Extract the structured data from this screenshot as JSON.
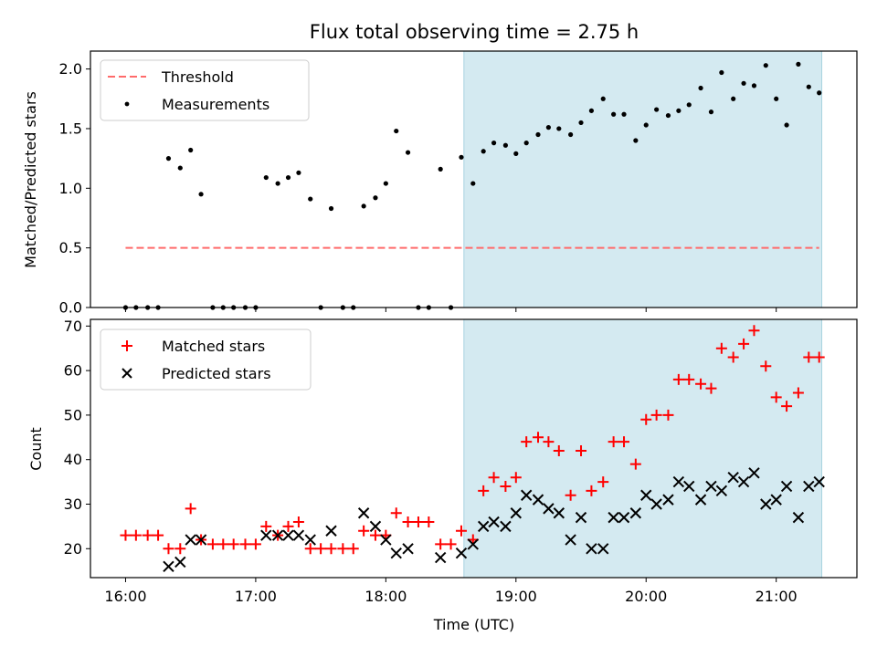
{
  "title": "Flux total observing time = 2.75 h",
  "colors": {
    "threshold": "#ff6b6b",
    "measurement": "#000000",
    "matched": "#ff0000",
    "predicted": "#000000",
    "shade": "#d4eaf1",
    "shade_edge": "#a9d3e0"
  },
  "chart_data": [
    {
      "type": "scatter",
      "ylabel": "Matched/Predicted stars",
      "xlim": [
        15.73,
        21.62
      ],
      "ylim": [
        0,
        2.15
      ],
      "yticks": [
        0.0,
        0.5,
        1.0,
        1.5,
        2.0
      ],
      "ytick_labels": [
        "0.0",
        "0.5",
        "1.0",
        "1.5",
        "2.0"
      ],
      "shaded_x": [
        18.6,
        21.35
      ],
      "legend": {
        "threshold": "Threshold",
        "measurements": "Measurements"
      },
      "threshold": {
        "value": 0.5,
        "x": [
          16.0,
          21.33
        ]
      },
      "measurements": {
        "x": [
          16.0,
          16.08,
          16.17,
          16.25,
          16.33,
          16.42,
          16.5,
          16.58,
          16.67,
          16.75,
          16.83,
          16.92,
          17.0,
          17.08,
          17.17,
          17.25,
          17.33,
          17.42,
          17.5,
          17.58,
          17.67,
          17.75,
          17.83,
          17.92,
          18.0,
          18.08,
          18.17,
          18.25,
          18.33,
          18.42,
          18.5,
          18.58,
          18.67,
          18.75,
          18.83,
          18.92,
          19.0,
          19.08,
          19.17,
          19.25,
          19.33,
          19.42,
          19.5,
          19.58,
          19.67,
          19.75,
          19.83,
          19.92,
          20.0,
          20.08,
          20.17,
          20.25,
          20.33,
          20.42,
          20.5,
          20.58,
          20.67,
          20.75,
          20.83,
          20.92,
          21.0,
          21.08,
          21.17,
          21.25,
          21.33
        ],
        "y": [
          0,
          0,
          0,
          0,
          1.25,
          1.17,
          1.32,
          0.95,
          0,
          0,
          0,
          0,
          0,
          1.09,
          1.04,
          1.09,
          1.13,
          0.91,
          0,
          0.83,
          0,
          0,
          0.85,
          0.92,
          1.04,
          1.48,
          1.3,
          0,
          0,
          1.16,
          0,
          1.26,
          1.04,
          1.31,
          1.38,
          1.36,
          1.29,
          1.38,
          1.45,
          1.51,
          1.5,
          1.45,
          1.55,
          1.65,
          1.75,
          1.62,
          1.62,
          1.4,
          1.53,
          1.66,
          1.61,
          1.65,
          1.7,
          1.84,
          1.64,
          1.97,
          1.75,
          1.88,
          1.86,
          2.03,
          1.75,
          1.53,
          2.04,
          1.85,
          1.8
        ]
      }
    },
    {
      "type": "scatter",
      "xlabel": "Time (UTC)",
      "ylabel": "Count",
      "xlim": [
        15.73,
        21.62
      ],
      "ylim": [
        13.5,
        71.5
      ],
      "yticks": [
        20,
        30,
        40,
        50,
        60,
        70
      ],
      "ytick_labels": [
        "20",
        "30",
        "40",
        "50",
        "60",
        "70"
      ],
      "xticks": [
        16,
        17,
        18,
        19,
        20,
        21
      ],
      "xtick_labels": [
        "16:00",
        "17:00",
        "18:00",
        "19:00",
        "20:00",
        "21:00"
      ],
      "shaded_x": [
        18.6,
        21.35
      ],
      "legend": {
        "matched": "Matched stars",
        "predicted": "Predicted stars"
      },
      "matched": {
        "x": [
          16.0,
          16.08,
          16.17,
          16.25,
          16.33,
          16.42,
          16.5,
          16.58,
          16.67,
          16.75,
          16.83,
          16.92,
          17.0,
          17.08,
          17.17,
          17.25,
          17.33,
          17.42,
          17.5,
          17.58,
          17.67,
          17.75,
          17.83,
          17.92,
          18.0,
          18.08,
          18.17,
          18.25,
          18.33,
          18.42,
          18.5,
          18.58,
          18.67,
          18.75,
          18.83,
          18.92,
          19.0,
          19.08,
          19.17,
          19.25,
          19.33,
          19.42,
          19.5,
          19.58,
          19.67,
          19.75,
          19.83,
          19.92,
          20.0,
          20.08,
          20.17,
          20.25,
          20.33,
          20.42,
          20.5,
          20.58,
          20.67,
          20.75,
          20.83,
          20.92,
          21.0,
          21.08,
          21.17,
          21.25,
          21.33
        ],
        "y": [
          23,
          23,
          23,
          23,
          20,
          20,
          29,
          22,
          21,
          21,
          21,
          21,
          21,
          25,
          23,
          25,
          26,
          20,
          20,
          20,
          20,
          20,
          24,
          23,
          23,
          28,
          26,
          26,
          26,
          21,
          21,
          24,
          22,
          33,
          36,
          34,
          36,
          44,
          45,
          44,
          42,
          32,
          42,
          33,
          35,
          44,
          44,
          39,
          49,
          50,
          50,
          58,
          58,
          57,
          56,
          65,
          63,
          66,
          69,
          61,
          54,
          52,
          55,
          63,
          63
        ]
      },
      "predicted": {
        "x": [
          16.33,
          16.42,
          16.5,
          16.58,
          17.08,
          17.17,
          17.25,
          17.33,
          17.42,
          17.58,
          17.83,
          17.92,
          18.0,
          18.08,
          18.17,
          18.42,
          18.58,
          18.67,
          18.75,
          18.83,
          18.92,
          19.0,
          19.08,
          19.17,
          19.25,
          19.33,
          19.42,
          19.5,
          19.58,
          19.67,
          19.75,
          19.83,
          19.92,
          20.0,
          20.08,
          20.17,
          20.25,
          20.33,
          20.42,
          20.5,
          20.58,
          20.67,
          20.75,
          20.83,
          20.92,
          21.0,
          21.08,
          21.17,
          21.25,
          21.33
        ],
        "y": [
          16,
          17,
          22,
          22,
          23,
          23,
          23,
          23,
          22,
          24,
          28,
          25,
          22,
          19,
          20,
          18,
          19,
          21,
          25,
          26,
          25,
          28,
          32,
          31,
          29,
          28,
          22,
          27,
          20,
          20,
          27,
          27,
          28,
          32,
          30,
          31,
          35,
          34,
          31,
          34,
          33,
          36,
          35,
          37,
          30,
          31,
          34,
          27,
          34,
          35
        ]
      }
    }
  ]
}
